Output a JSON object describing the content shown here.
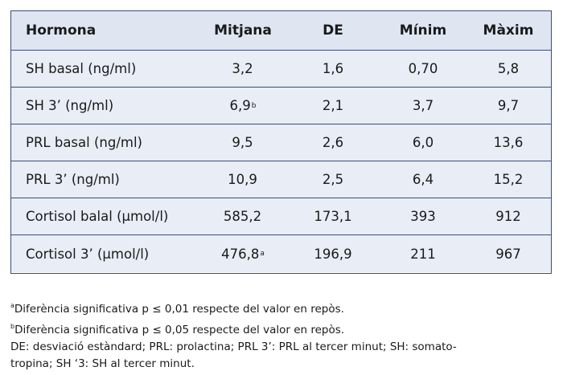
{
  "table": {
    "headers": [
      "Hormona",
      "Mitjana",
      "DE",
      "Mínim",
      "Màxim"
    ],
    "rows": [
      {
        "label": "SH basal (ng/ml)",
        "mean": "3,2",
        "mean_sup": "",
        "sd": "1,6",
        "min": "0,70",
        "max": "5,8"
      },
      {
        "label": "SH 3’ (ng/ml)",
        "mean": "6,9",
        "mean_sup": "b",
        "sd": "2,1",
        "min": "3,7",
        "max": "9,7"
      },
      {
        "label": "PRL basal (ng/ml)",
        "mean": "9,5",
        "mean_sup": "",
        "sd": "2,6",
        "min": "6,0",
        "max": "13,6"
      },
      {
        "label": "PRL 3’ (ng/ml)",
        "mean": "10,9",
        "mean_sup": "",
        "sd": "2,5",
        "min": "6,4",
        "max": "15,2"
      },
      {
        "label": "Cortisol balal (μmol/l)",
        "mean": "585,2",
        "mean_sup": "",
        "sd": "173,1",
        "min": "393",
        "max": "912"
      },
      {
        "label": "Cortisol 3’ (μmol/l)",
        "mean": "476,8",
        "mean_sup": "a",
        "sd": "196,9",
        "min": "211",
        "max": "967"
      }
    ]
  },
  "footnotes": {
    "a_mark": "a",
    "a_text": "Diferència significativa p ≤ 0,01 respecte del valor en repòs.",
    "b_mark": "b",
    "b_text": "Diferència significativa p ≤ 0,05 respecte del valor en repòs.",
    "abbreviations": "DE: desviació estàndard; PRL: prolactina; PRL 3’: PRL al tercer minut; SH: somato-",
    "abbreviations_cont": "tropina; SH ‘3: SH al tercer minut."
  }
}
